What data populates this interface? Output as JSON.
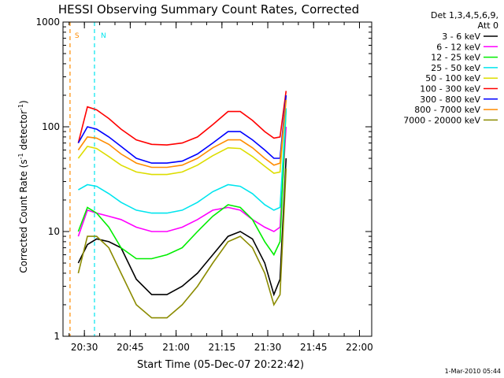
{
  "chart_data": {
    "type": "line",
    "title": "HESSI Observing Summary Count Rates, Corrected",
    "xlabel": "Start Time (05-Dec-07 20:22:42)",
    "ylabel_main": "Corrected Count Rate (s",
    "ylabel_sup1": "-1",
    "ylabel_mid": " detector",
    "ylabel_sup2": "-1",
    "ylabel_end": ")",
    "footer": "1-Mar-2010 05:44",
    "x_ticks": [
      "20:30",
      "20:45",
      "21:00",
      "21:15",
      "21:30",
      "21:45",
      "22:00"
    ],
    "x_tick_minutes": [
      30,
      45,
      60,
      75,
      90,
      105,
      120
    ],
    "xlim_minutes": [
      23,
      124
    ],
    "y_ticks": [
      "1",
      "10",
      "100",
      "1000"
    ],
    "ylim": [
      1,
      1000
    ],
    "y_scale": "log",
    "legend_header": [
      "Det 1,3,4,5,6,9,",
      "Att 0"
    ],
    "legend_position": "top-right",
    "series": [
      {
        "name": "3 - 6 keV",
        "color": "#000000",
        "values": [
          5,
          7.5,
          8.5,
          8,
          7,
          3.5,
          2.5,
          2.5,
          3,
          4,
          6,
          9,
          10,
          8.5,
          5,
          2.5,
          3.5,
          50
        ]
      },
      {
        "name": "6 - 12 keV",
        "color": "#ff00ff",
        "values": [
          9,
          16,
          15,
          14,
          13,
          11,
          10,
          10,
          11,
          13,
          16,
          17,
          16,
          13,
          11,
          10,
          11,
          100
        ]
      },
      {
        "name": "12 - 25 keV",
        "color": "#00ee00",
        "values": [
          10,
          17,
          15,
          11,
          7,
          5.5,
          5.5,
          6,
          7,
          10,
          14,
          18,
          17,
          13,
          8,
          6,
          8,
          150
        ]
      },
      {
        "name": "25 - 50 keV",
        "color": "#00e5ee",
        "values": [
          25,
          28,
          27,
          23,
          19,
          16,
          15,
          15,
          16,
          19,
          24,
          28,
          27,
          23,
          18,
          16,
          17,
          150
        ]
      },
      {
        "name": "50 - 100 keV",
        "color": "#dddd00",
        "values": [
          50,
          65,
          62,
          52,
          43,
          37,
          35,
          35,
          37,
          43,
          53,
          63,
          62,
          52,
          42,
          36,
          37,
          200
        ]
      },
      {
        "name": "100 - 300 keV",
        "color": "#ff0000",
        "values": [
          70,
          155,
          145,
          120,
          95,
          75,
          68,
          67,
          70,
          80,
          105,
          140,
          140,
          115,
          90,
          78,
          80,
          220
        ]
      },
      {
        "name": "300 - 800 keV",
        "color": "#0000ff",
        "values": [
          70,
          100,
          95,
          80,
          65,
          50,
          45,
          45,
          47,
          55,
          70,
          90,
          90,
          75,
          60,
          50,
          50,
          200
        ]
      },
      {
        "name": "800 - 7000 keV",
        "color": "#ff8c00",
        "values": [
          60,
          80,
          78,
          68,
          55,
          45,
          41,
          41,
          43,
          50,
          63,
          75,
          75,
          63,
          50,
          43,
          45,
          180
        ]
      },
      {
        "name": "7000 - 20000 keV",
        "color": "#8b8b00",
        "values": [
          4,
          9,
          9,
          7,
          4,
          2,
          1.5,
          1.5,
          2,
          3,
          5,
          8,
          9,
          7,
          4,
          2,
          2.5,
          40
        ]
      }
    ],
    "series_minutes": [
      28,
      31,
      34,
      38,
      42,
      47,
      52,
      57,
      62,
      67,
      72,
      77,
      81,
      85,
      89,
      92,
      94,
      96
    ],
    "markers": [
      {
        "label": "S",
        "minutes": 25.3,
        "color": "#ff8c00"
      },
      {
        "label": "N",
        "minutes": 33.3,
        "color": "#00e5ee"
      }
    ]
  }
}
